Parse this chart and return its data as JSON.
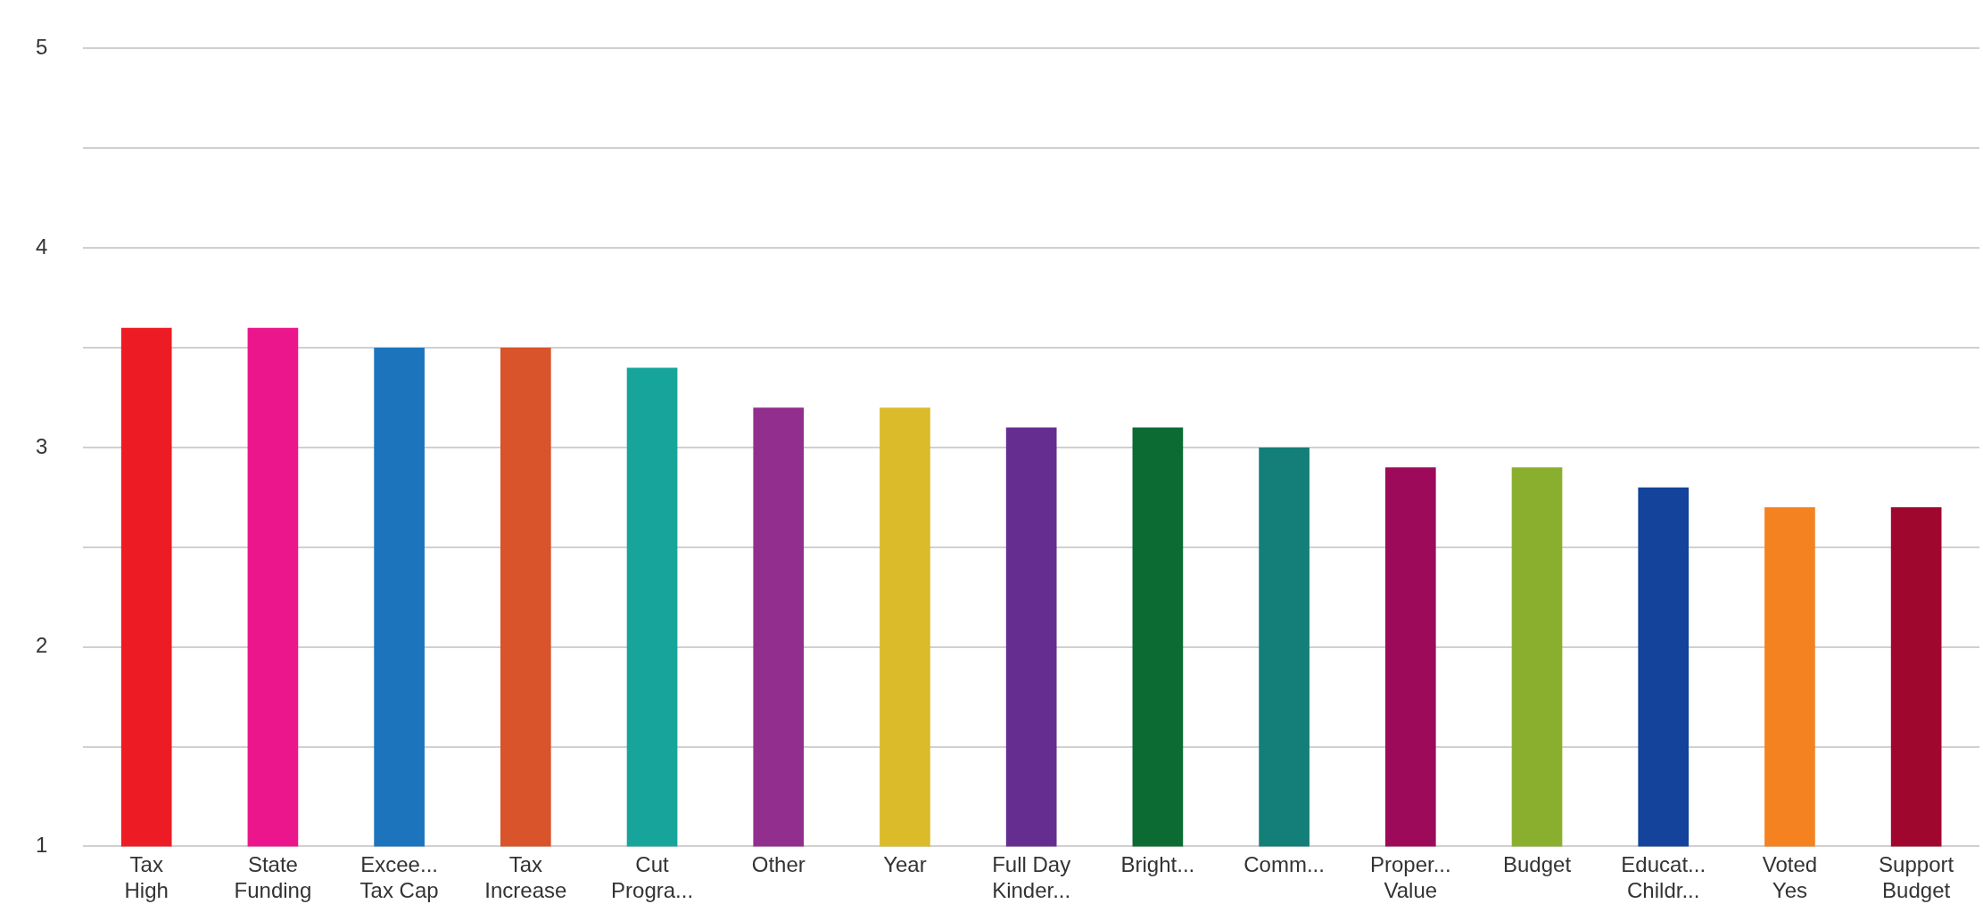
{
  "chart_data": {
    "type": "bar",
    "categories": [
      "Tax\nHigh",
      "State\nFunding",
      "Excee...\nTax Cap",
      "Tax\nIncrease",
      "Cut\nProgra...",
      "Other",
      "Year",
      "Full Day\nKinder...",
      "Bright...",
      "Comm...",
      "Proper...\nValue",
      "Budget",
      "Educat...\nChildr...",
      "Voted\nYes",
      "Support\nBudget"
    ],
    "values": [
      3.6,
      3.6,
      3.5,
      3.5,
      3.4,
      3.2,
      3.2,
      3.1,
      3.1,
      3.0,
      2.9,
      2.9,
      2.8,
      2.7,
      2.7
    ],
    "colors": [
      "#ed1c24",
      "#ec168c",
      "#1c75bc",
      "#d9532b",
      "#17a59b",
      "#922e8d",
      "#dbbb29",
      "#662d91",
      "#0c6b33",
      "#137f78",
      "#9e0a5a",
      "#8aaf2e",
      "#13439a",
      "#f58220",
      "#a0072f"
    ],
    "ylim": [
      1,
      5
    ],
    "yticks": [
      1,
      {
        "value": 1.5,
        "label": null
      },
      2,
      {
        "value": 2.5,
        "label": null
      },
      3,
      {
        "value": 3.5,
        "label": null
      },
      4,
      {
        "value": 4.5,
        "label": null
      },
      5
    ],
    "grid": "y",
    "legend": false
  }
}
